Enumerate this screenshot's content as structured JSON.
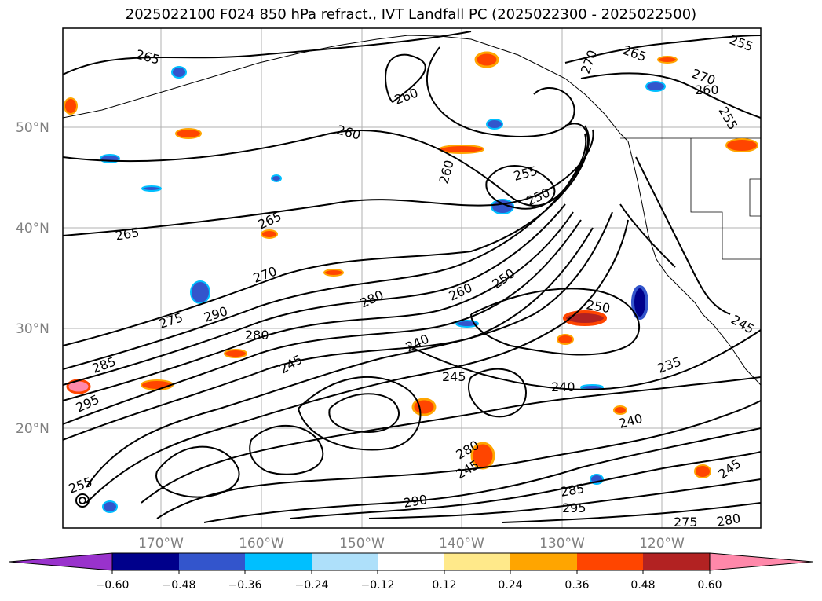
{
  "title": "2025022100 F024 850 hPa refract., IVT Landfall PC (2025022300 - 2025022500)",
  "lat_labels": [
    "50°N",
    "40°N",
    "30°N",
    "20°N"
  ],
  "lon_labels": [
    "170°W",
    "160°W",
    "150°W",
    "140°W",
    "130°W",
    "120°W"
  ],
  "contour_labels": [
    "265",
    "260",
    "260",
    "265",
    "265",
    "270",
    "275",
    "290",
    "280",
    "285",
    "295",
    "280",
    "260",
    "250",
    "250",
    "240",
    "245",
    "245",
    "255",
    "240",
    "240",
    "235",
    "250",
    "245",
    "280",
    "285",
    "290",
    "295",
    "275",
    "280",
    "245",
    "255",
    "265",
    "270",
    "270",
    "255",
    "260",
    "255",
    "245",
    "260"
  ],
  "colorbar": {
    "ticks": [
      "−0.60",
      "−0.48",
      "−0.36",
      "−0.24",
      "−0.12",
      "0.12",
      "0.24",
      "0.36",
      "0.48",
      "0.60"
    ],
    "colors": [
      "#9932cc",
      "#00008b",
      "#3355cc",
      "#00bfff",
      "#aee0fa",
      "#ffffff",
      "#ffe98a",
      "#ffa500",
      "#ff4500",
      "#b22222",
      "#ff88aa"
    ]
  }
}
